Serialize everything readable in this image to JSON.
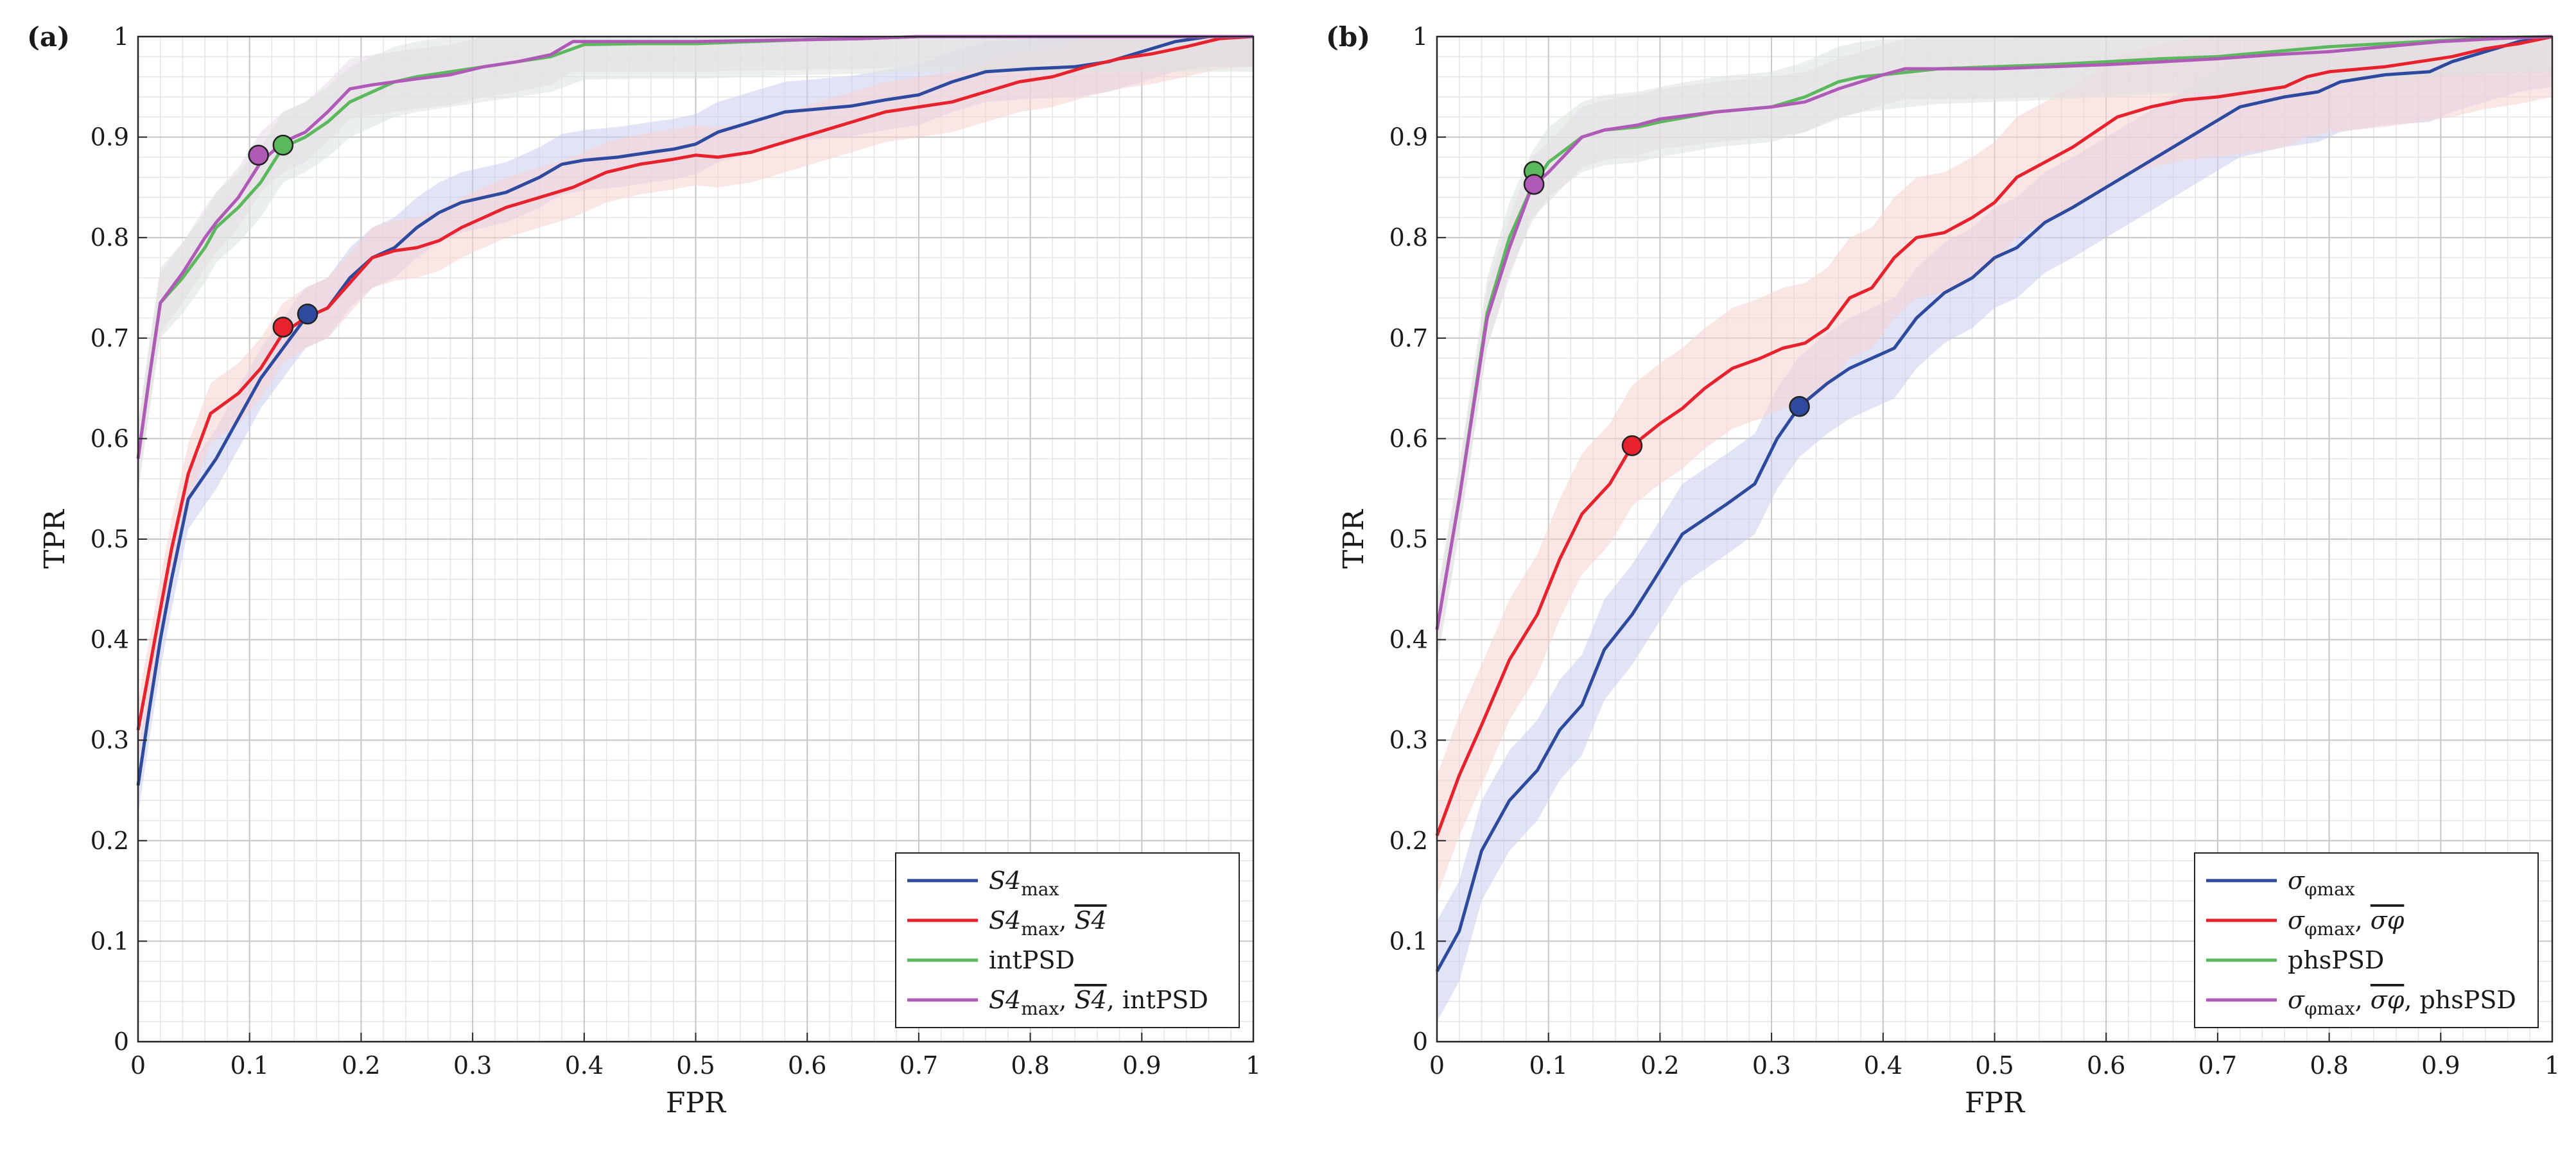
{
  "chart_data": [
    {
      "type": "line",
      "panel_label": "(a)",
      "xlabel": "FPR",
      "ylabel": "TPR",
      "xlim": [
        0,
        1
      ],
      "ylim": [
        0,
        1
      ],
      "xticks": [
        "0",
        "0.1",
        "0.2",
        "0.3",
        "0.4",
        "0.5",
        "0.6",
        "0.7",
        "0.8",
        "0.9",
        "1"
      ],
      "yticks": [
        "0",
        "0.1",
        "0.2",
        "0.3",
        "0.4",
        "0.5",
        "0.6",
        "0.7",
        "0.8",
        "0.9",
        "1"
      ],
      "grid": "major and minor",
      "legend_position": "bottom-right",
      "series": [
        {
          "name": "S4max",
          "label": {
            "base": "S4",
            "sub": "max",
            "tail": ""
          },
          "color": "#2e4a9e",
          "band_color": "#c8cdee",
          "band": 0.03,
          "x": [
            0,
            0.01,
            0.02,
            0.03,
            0.045,
            0.07,
            0.09,
            0.11,
            0.13,
            0.15,
            0.17,
            0.19,
            0.21,
            0.23,
            0.25,
            0.27,
            0.29,
            0.31,
            0.33,
            0.36,
            0.38,
            0.4,
            0.43,
            0.46,
            0.48,
            0.5,
            0.52,
            0.55,
            0.58,
            0.61,
            0.64,
            0.67,
            0.7,
            0.73,
            0.76,
            0.8,
            0.84,
            0.87,
            0.9,
            0.93,
            0.96,
            1.0
          ],
          "y": [
            0.255,
            0.33,
            0.4,
            0.46,
            0.54,
            0.58,
            0.62,
            0.66,
            0.69,
            0.72,
            0.73,
            0.76,
            0.78,
            0.79,
            0.81,
            0.825,
            0.835,
            0.84,
            0.845,
            0.86,
            0.873,
            0.877,
            0.88,
            0.885,
            0.888,
            0.893,
            0.905,
            0.915,
            0.925,
            0.928,
            0.931,
            0.937,
            0.942,
            0.955,
            0.965,
            0.968,
            0.97,
            0.975,
            0.985,
            0.995,
            1.0,
            1.0
          ]
        },
        {
          "name": "S4max, S4 mean",
          "label": {
            "base": "S4",
            "sub": "max",
            "tail": ", ",
            "bar": "S4",
            "tail2": ""
          },
          "color": "#e8222c",
          "band_color": "#f8d2d2",
          "band": 0.03,
          "x": [
            0,
            0.01,
            0.02,
            0.03,
            0.045,
            0.065,
            0.09,
            0.11,
            0.13,
            0.15,
            0.17,
            0.19,
            0.21,
            0.23,
            0.25,
            0.27,
            0.29,
            0.31,
            0.33,
            0.36,
            0.39,
            0.42,
            0.45,
            0.48,
            0.5,
            0.52,
            0.55,
            0.58,
            0.61,
            0.64,
            0.67,
            0.7,
            0.73,
            0.76,
            0.79,
            0.82,
            0.85,
            0.88,
            0.91,
            0.94,
            0.97,
            1.0
          ],
          "y": [
            0.31,
            0.37,
            0.43,
            0.49,
            0.565,
            0.625,
            0.645,
            0.67,
            0.705,
            0.72,
            0.73,
            0.755,
            0.78,
            0.787,
            0.79,
            0.797,
            0.81,
            0.82,
            0.83,
            0.84,
            0.85,
            0.865,
            0.873,
            0.878,
            0.882,
            0.88,
            0.885,
            0.895,
            0.905,
            0.915,
            0.925,
            0.93,
            0.935,
            0.945,
            0.955,
            0.96,
            0.97,
            0.978,
            0.983,
            0.99,
            0.998,
            1.0
          ]
        },
        {
          "name": "intPSD",
          "label": {
            "base": "intPSD",
            "plain": true
          },
          "color": "#5cb85c",
          "band_color": "#dde3dd",
          "band": 0.035,
          "x": [
            0,
            0.01,
            0.02,
            0.04,
            0.06,
            0.07,
            0.09,
            0.11,
            0.13,
            0.15,
            0.17,
            0.19,
            0.21,
            0.23,
            0.25,
            0.28,
            0.31,
            0.34,
            0.37,
            0.4,
            0.45,
            0.5,
            0.55,
            0.6,
            0.65,
            0.7,
            0.8,
            0.9,
            1.0
          ],
          "y": [
            0.58,
            0.66,
            0.735,
            0.76,
            0.79,
            0.81,
            0.83,
            0.855,
            0.89,
            0.9,
            0.915,
            0.935,
            0.945,
            0.955,
            0.96,
            0.965,
            0.97,
            0.975,
            0.98,
            0.992,
            0.993,
            0.993,
            0.995,
            0.997,
            0.998,
            1.0,
            1.0,
            1.0,
            1.0
          ]
        },
        {
          "name": "S4max, S4 mean, intPSD",
          "label": {
            "base": "S4",
            "sub": "max",
            "tail": ", ",
            "bar": "S4",
            "tail2": ", intPSD"
          },
          "color": "#b05ab8",
          "band_color": "#e6dde6",
          "band": 0.03,
          "x": [
            0,
            0.01,
            0.02,
            0.04,
            0.06,
            0.07,
            0.09,
            0.11,
            0.13,
            0.15,
            0.17,
            0.19,
            0.21,
            0.23,
            0.25,
            0.28,
            0.31,
            0.34,
            0.37,
            0.39,
            0.45,
            0.5,
            0.55,
            0.6,
            0.65,
            0.7,
            0.8,
            0.9,
            1.0
          ],
          "y": [
            0.58,
            0.66,
            0.735,
            0.765,
            0.8,
            0.815,
            0.84,
            0.875,
            0.895,
            0.905,
            0.925,
            0.948,
            0.952,
            0.955,
            0.958,
            0.962,
            0.97,
            0.975,
            0.982,
            0.995,
            0.995,
            0.995,
            0.996,
            0.997,
            0.998,
            1.0,
            1.0,
            1.0,
            1.0
          ]
        }
      ],
      "markers": [
        {
          "series": 0,
          "x": 0.152,
          "y": 0.724
        },
        {
          "series": 1,
          "x": 0.13,
          "y": 0.711
        },
        {
          "series": 2,
          "x": 0.13,
          "y": 0.892
        },
        {
          "series": 3,
          "x": 0.108,
          "y": 0.882
        }
      ]
    },
    {
      "type": "line",
      "panel_label": "(b)",
      "xlabel": "FPR",
      "ylabel": "TPR",
      "xlim": [
        0,
        1
      ],
      "ylim": [
        0,
        1
      ],
      "xticks": [
        "0",
        "0.1",
        "0.2",
        "0.3",
        "0.4",
        "0.5",
        "0.6",
        "0.7",
        "0.8",
        "0.9",
        "1"
      ],
      "yticks": [
        "0",
        "0.1",
        "0.2",
        "0.3",
        "0.4",
        "0.5",
        "0.6",
        "0.7",
        "0.8",
        "0.9",
        "1"
      ],
      "grid": "major and minor",
      "legend_position": "bottom-right",
      "series": [
        {
          "name": "σφmax",
          "label": {
            "base": "σ",
            "sub": "φmax",
            "tail": ""
          },
          "color": "#2e4a9e",
          "band_color": "#c8cdee",
          "band": 0.05,
          "x": [
            0,
            0.02,
            0.04,
            0.065,
            0.09,
            0.11,
            0.13,
            0.15,
            0.175,
            0.195,
            0.22,
            0.24,
            0.26,
            0.285,
            0.305,
            0.325,
            0.35,
            0.37,
            0.39,
            0.41,
            0.43,
            0.455,
            0.48,
            0.5,
            0.52,
            0.545,
            0.57,
            0.6,
            0.63,
            0.66,
            0.69,
            0.72,
            0.76,
            0.79,
            0.81,
            0.85,
            0.89,
            0.91,
            0.94,
            0.97,
            1.0
          ],
          "y": [
            0.07,
            0.11,
            0.19,
            0.24,
            0.27,
            0.31,
            0.335,
            0.39,
            0.425,
            0.46,
            0.505,
            0.52,
            0.535,
            0.555,
            0.6,
            0.632,
            0.655,
            0.67,
            0.68,
            0.69,
            0.72,
            0.745,
            0.76,
            0.78,
            0.79,
            0.815,
            0.83,
            0.85,
            0.87,
            0.89,
            0.91,
            0.93,
            0.94,
            0.945,
            0.955,
            0.962,
            0.965,
            0.975,
            0.985,
            0.995,
            1.0
          ]
        },
        {
          "name": "σφmax, σφ mean",
          "label": {
            "base": "σ",
            "sub": "φmax",
            "tail": ", ",
            "bar": "σφ",
            "tail2": ""
          },
          "color": "#e8222c",
          "band_color": "#f8d2d2",
          "band": 0.06,
          "x": [
            0,
            0.02,
            0.04,
            0.065,
            0.09,
            0.11,
            0.13,
            0.155,
            0.175,
            0.2,
            0.22,
            0.24,
            0.265,
            0.29,
            0.31,
            0.33,
            0.35,
            0.37,
            0.39,
            0.41,
            0.43,
            0.455,
            0.48,
            0.5,
            0.52,
            0.545,
            0.57,
            0.59,
            0.61,
            0.64,
            0.67,
            0.7,
            0.73,
            0.76,
            0.78,
            0.8,
            0.85,
            0.88,
            0.91,
            0.94,
            0.97,
            1.0
          ],
          "y": [
            0.205,
            0.265,
            0.315,
            0.38,
            0.425,
            0.48,
            0.525,
            0.555,
            0.593,
            0.615,
            0.63,
            0.65,
            0.67,
            0.68,
            0.69,
            0.695,
            0.71,
            0.74,
            0.75,
            0.78,
            0.8,
            0.805,
            0.82,
            0.835,
            0.86,
            0.875,
            0.89,
            0.905,
            0.92,
            0.93,
            0.937,
            0.94,
            0.945,
            0.95,
            0.96,
            0.965,
            0.97,
            0.975,
            0.98,
            0.988,
            0.993,
            1.0
          ]
        },
        {
          "name": "phsPSD",
          "label": {
            "base": "phsPSD",
            "plain": true
          },
          "color": "#5cb85c",
          "band_color": "#dde3dd",
          "band": 0.035,
          "x": [
            0,
            0.02,
            0.045,
            0.065,
            0.085,
            0.1,
            0.13,
            0.15,
            0.18,
            0.2,
            0.25,
            0.3,
            0.33,
            0.36,
            0.38,
            0.4,
            0.45,
            0.5,
            0.55,
            0.6,
            0.65,
            0.7,
            0.75,
            0.8,
            0.85,
            0.9,
            0.95,
            1.0
          ],
          "y": [
            0.41,
            0.54,
            0.725,
            0.8,
            0.85,
            0.875,
            0.9,
            0.907,
            0.91,
            0.915,
            0.925,
            0.93,
            0.94,
            0.955,
            0.96,
            0.962,
            0.968,
            0.97,
            0.972,
            0.975,
            0.978,
            0.98,
            0.985,
            0.99,
            0.993,
            0.996,
            0.999,
            1.0
          ]
        },
        {
          "name": "σφmax, σφ mean, phsPSD",
          "label": {
            "base": "σ",
            "sub": "φmax",
            "tail": ", ",
            "bar": "σφ",
            "tail2": ", phsPSD"
          },
          "color": "#b05ab8",
          "band_color": "#e6dde6",
          "band": 0.03,
          "x": [
            0,
            0.02,
            0.045,
            0.065,
            0.085,
            0.1,
            0.13,
            0.15,
            0.18,
            0.2,
            0.25,
            0.3,
            0.33,
            0.36,
            0.4,
            0.42,
            0.45,
            0.5,
            0.55,
            0.6,
            0.65,
            0.7,
            0.75,
            0.8,
            0.85,
            0.9,
            0.95,
            1.0
          ],
          "y": [
            0.41,
            0.54,
            0.72,
            0.79,
            0.85,
            0.865,
            0.9,
            0.907,
            0.912,
            0.918,
            0.925,
            0.93,
            0.935,
            0.948,
            0.962,
            0.968,
            0.968,
            0.968,
            0.97,
            0.972,
            0.975,
            0.978,
            0.982,
            0.985,
            0.99,
            0.995,
            0.998,
            1.0
          ]
        }
      ],
      "markers": [
        {
          "series": 0,
          "x": 0.325,
          "y": 0.632
        },
        {
          "series": 1,
          "x": 0.175,
          "y": 0.593
        },
        {
          "series": 2,
          "x": 0.087,
          "y": 0.866
        },
        {
          "series": 3,
          "x": 0.087,
          "y": 0.853
        }
      ]
    }
  ]
}
